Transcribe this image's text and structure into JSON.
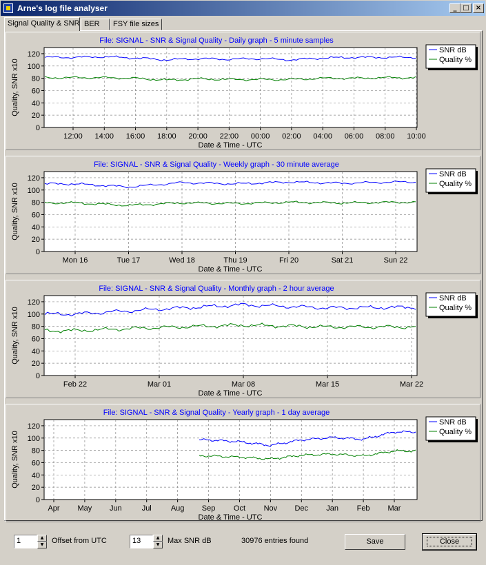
{
  "window": {
    "title": "Arne's log file analyser",
    "minimize": "_",
    "maximize": "□",
    "close": "×"
  },
  "tabs": [
    {
      "label": "Signal Quality & SNR",
      "active": true
    },
    {
      "label": "BER",
      "active": false
    },
    {
      "label": "FSY file sizes",
      "active": false
    }
  ],
  "charts": {
    "ylabel": "Quality, SNR x10",
    "xlabel": "Date & Time - UTC",
    "yticks": [
      "0",
      "20",
      "40",
      "60",
      "80",
      "100",
      "120"
    ],
    "legend": [
      "SNR dB",
      "Quality %"
    ],
    "colors": {
      "snr": "#0000ff",
      "quality": "#008000",
      "title": "#0000ff"
    },
    "titles": [
      "File: SIGNAL - SNR & Signal Quality - Daily graph - 5 minute samples",
      "File: SIGNAL - SNR & Signal Quality - Weekly graph - 30 minute average",
      "File: SIGNAL - SNR & Signal Quality - Monthly graph - 2 hour average",
      "File: SIGNAL - SNR & Signal Quality - Yearly graph - 1 day average"
    ],
    "xticks": [
      [
        "12:00",
        "14:00",
        "16:00",
        "18:00",
        "20:00",
        "22:00",
        "00:00",
        "02:00",
        "04:00",
        "06:00",
        "08:00",
        "10:00"
      ],
      [
        "Mon 16",
        "Tue 17",
        "Wed 18",
        "Thu 19",
        "Fri 20",
        "Sat 21",
        "Sun 22"
      ],
      [
        "Feb 22",
        "Mar 01",
        "Mar 08",
        "Mar 15",
        "Mar 22"
      ],
      [
        "Apr",
        "May",
        "Jun",
        "Jul",
        "Aug",
        "Sep",
        "Oct",
        "Nov",
        "Dec",
        "Jan",
        "Feb",
        "Mar"
      ]
    ]
  },
  "chart_data": [
    {
      "type": "line",
      "title": "File: SIGNAL - SNR & Signal Quality - Daily graph - 5 minute samples",
      "xlabel": "Date & Time - UTC",
      "ylabel": "Quality, SNR x10",
      "ylim": [
        0,
        130
      ],
      "categories": [
        "12:00",
        "14:00",
        "16:00",
        "18:00",
        "20:00",
        "22:00",
        "00:00",
        "02:00",
        "04:00",
        "06:00",
        "08:00",
        "10:00"
      ],
      "grid": true,
      "legend": "right",
      "series": [
        {
          "name": "SNR dB",
          "values": [
            114,
            115,
            113,
            110,
            112,
            111,
            112,
            110,
            113,
            114,
            114,
            114
          ]
        },
        {
          "name": "Quality %",
          "values": [
            81,
            81,
            80,
            77,
            79,
            78,
            78,
            78,
            80,
            80,
            81,
            81
          ]
        }
      ]
    },
    {
      "type": "line",
      "title": "File: SIGNAL - SNR & Signal Quality - Weekly graph - 30 minute average",
      "xlabel": "Date & Time - UTC",
      "ylabel": "Quality, SNR x10",
      "ylim": [
        0,
        130
      ],
      "categories": [
        "Mon 16",
        "Tue 17",
        "Wed 18",
        "Thu 19",
        "Fri 20",
        "Sat 21",
        "Sun 22"
      ],
      "grid": true,
      "legend": "right",
      "series": [
        {
          "name": "SNR dB",
          "values": [
            110,
            105,
            112,
            110,
            113,
            111,
            113
          ]
        },
        {
          "name": "Quality %",
          "values": [
            79,
            75,
            79,
            78,
            80,
            79,
            80
          ]
        }
      ]
    },
    {
      "type": "line",
      "title": "File: SIGNAL - SNR & Signal Quality - Monthly graph - 2 hour average",
      "xlabel": "Date & Time - UTC",
      "ylabel": "Quality, SNR x10",
      "ylim": [
        0,
        130
      ],
      "categories": [
        "Feb 22",
        "Mar 01",
        "Mar 08",
        "Mar 15",
        "Mar 22"
      ],
      "grid": true,
      "legend": "right",
      "series": [
        {
          "name": "SNR dB",
          "values": [
            100,
            108,
            115,
            110,
            111
          ]
        },
        {
          "name": "Quality %",
          "values": [
            73,
            78,
            82,
            79,
            79
          ]
        }
      ]
    },
    {
      "type": "line",
      "title": "File: SIGNAL - SNR & Signal Quality - Yearly graph - 1 day average",
      "xlabel": "Date & Time - UTC",
      "ylabel": "Quality, SNR x10",
      "ylim": [
        0,
        130
      ],
      "categories": [
        "Apr",
        "May",
        "Jun",
        "Jul",
        "Aug",
        "Sep",
        "Oct",
        "Nov",
        "Dec",
        "Jan",
        "Feb",
        "Mar"
      ],
      "grid": true,
      "legend": "right",
      "series": [
        {
          "name": "SNR dB",
          "values": [
            null,
            null,
            null,
            null,
            null,
            97,
            94,
            88,
            97,
            101,
            98,
            110
          ]
        },
        {
          "name": "Quality %",
          "values": [
            null,
            null,
            null,
            null,
            null,
            71,
            69,
            66,
            72,
            74,
            71,
            79
          ]
        }
      ]
    }
  ],
  "bottom": {
    "offset_value": "1",
    "offset_label": "Offset from UTC",
    "maxsnr_value": "13",
    "maxsnr_label": "Max SNR dB",
    "entries": "30976 entries found",
    "save": "Save",
    "close": "Close"
  }
}
